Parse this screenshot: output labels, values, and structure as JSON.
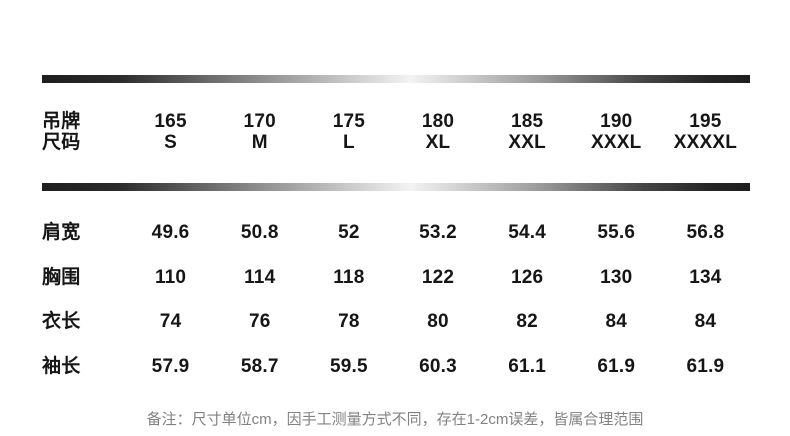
{
  "chart_data": {
    "type": "table",
    "header_label_lines": [
      "吊牌",
      "尺码"
    ],
    "columns": [
      {
        "height": "165",
        "size": "S"
      },
      {
        "height": "170",
        "size": "M"
      },
      {
        "height": "175",
        "size": "L"
      },
      {
        "height": "180",
        "size": "XL"
      },
      {
        "height": "185",
        "size": "XXL"
      },
      {
        "height": "190",
        "size": "XXXL"
      },
      {
        "height": "195",
        "size": "XXXXL"
      }
    ],
    "rows": [
      {
        "label": "肩宽",
        "values": [
          "49.6",
          "50.8",
          "52",
          "53.2",
          "54.4",
          "55.6",
          "56.8"
        ]
      },
      {
        "label": "胸围",
        "values": [
          "110",
          "114",
          "118",
          "122",
          "126",
          "130",
          "134"
        ]
      },
      {
        "label": "衣长",
        "values": [
          "74",
          "76",
          "78",
          "80",
          "82",
          "84",
          "84"
        ]
      },
      {
        "label": "袖长",
        "values": [
          "57.9",
          "58.7",
          "59.5",
          "60.3",
          "61.1",
          "61.9",
          "61.9"
        ]
      }
    ],
    "note": "备注：尺寸单位cm，因手工测量方式不同，存在1-2cm误差，皆属合理范围"
  },
  "colors": {
    "text": "#161616",
    "note": "#828282",
    "bar_edge": "#1e1e1e",
    "bar_mid": "#f3f3f3",
    "background": "#ffffff"
  }
}
